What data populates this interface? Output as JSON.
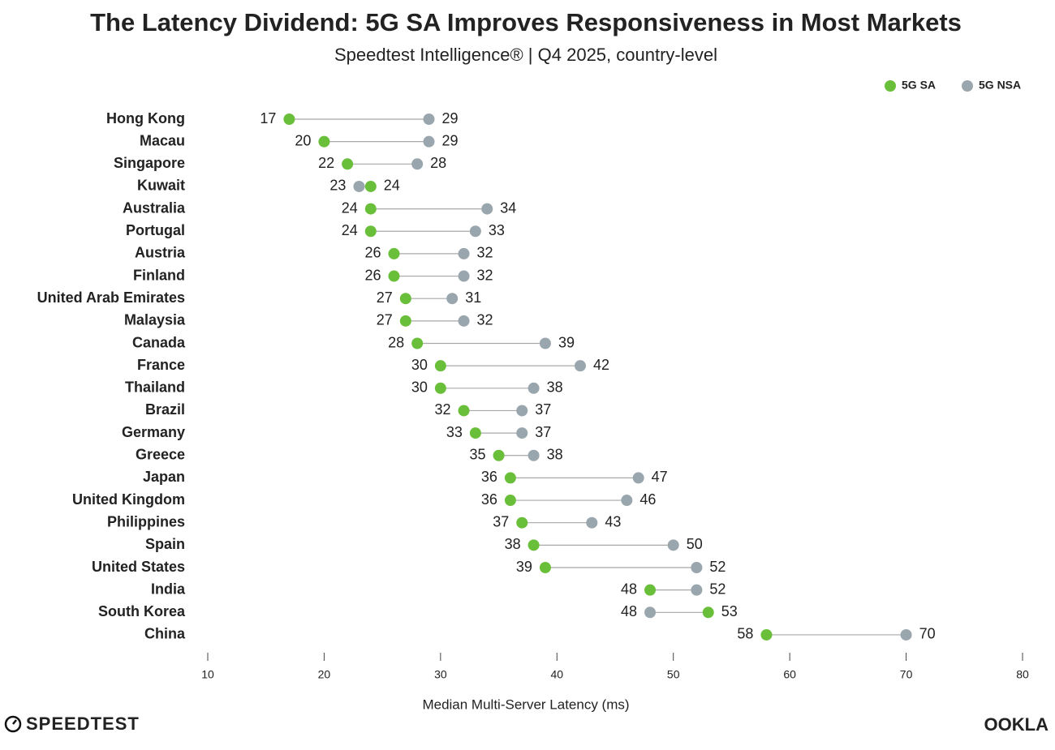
{
  "chart_data": {
    "type": "dumbbell",
    "title": "The Latency Dividend: 5G SA Improves Responsiveness in Most Markets",
    "subtitle": "Speedtest Intelligence® | Q4 2025, country-level",
    "x_label": "Median Multi-Server Latency (ms)",
    "categories": [
      "Hong Kong",
      "Macau",
      "Singapore",
      "Kuwait",
      "Australia",
      "Portugal",
      "Austria",
      "Finland",
      "United Arab Emirates",
      "Malaysia",
      "Canada",
      "France",
      "Thailand",
      "Brazil",
      "Germany",
      "Greece",
      "Japan",
      "United Kingdom",
      "Philippines",
      "Spain",
      "United States",
      "India",
      "South Korea",
      "China"
    ],
    "series": [
      {
        "name": "5G SA",
        "color": "#6abf3a",
        "values": [
          17,
          20,
          22,
          24,
          24,
          24,
          26,
          26,
          27,
          27,
          28,
          30,
          30,
          32,
          33,
          35,
          36,
          36,
          37,
          38,
          39,
          48,
          53,
          58
        ]
      },
      {
        "name": "5G NSA",
        "color": "#9aa6ad",
        "values": [
          29,
          29,
          28,
          23,
          34,
          33,
          32,
          32,
          31,
          32,
          39,
          42,
          38,
          37,
          37,
          38,
          47,
          46,
          43,
          50,
          52,
          52,
          48,
          70
        ]
      }
    ],
    "xlim": [
      10,
      80
    ],
    "xticks": [
      10,
      20,
      30,
      40,
      50,
      60,
      70,
      80
    ],
    "legend": "top-right",
    "logo_left": "SPEEDTEST",
    "logo_right": "OOKLA"
  }
}
